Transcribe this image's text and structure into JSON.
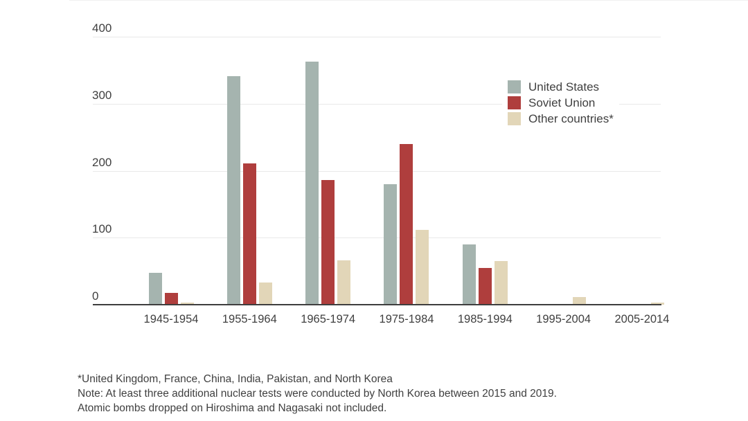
{
  "chart_data": {
    "type": "bar",
    "title": "",
    "xlabel": "",
    "ylabel": "",
    "ylim": [
      0,
      400
    ],
    "yticks": [
      400,
      300,
      200,
      100,
      0
    ],
    "grid": true,
    "legend_position": "upper right",
    "categories": [
      "1945-1954",
      "1955-1964",
      "1965-1974",
      "1975-1984",
      "1985-1994",
      "1995-2004",
      "2005-2014"
    ],
    "series": [
      {
        "name": "United States",
        "color": "#a5b4af",
        "values": [
          48,
          341,
          363,
          180,
          90,
          0,
          0
        ]
      },
      {
        "name": "Soviet Union",
        "color": "#af3e3d",
        "values": [
          18,
          211,
          186,
          240,
          55,
          0,
          0
        ]
      },
      {
        "name": "Other countries*",
        "color": "#e2d6b8",
        "values": [
          3,
          33,
          66,
          112,
          65,
          11,
          3
        ]
      }
    ]
  },
  "footnotes": {
    "line1": "*United Kingdom, France, China, India, Pakistan, and North Korea",
    "line2": "Note: At least three additional nuclear tests were conducted by North Korea between 2015 and 2019.",
    "line3": "Atomic bombs dropped on Hiroshima and Nagasaki not included."
  },
  "colors": {
    "background": "#ffffff",
    "text": "#3f3f3f",
    "gridline": "#e9e9e9",
    "axis": "#3e3e3e",
    "united_states": "#a5b4af",
    "soviet_union": "#af3e3d",
    "other_countries": "#e2d6b8"
  }
}
